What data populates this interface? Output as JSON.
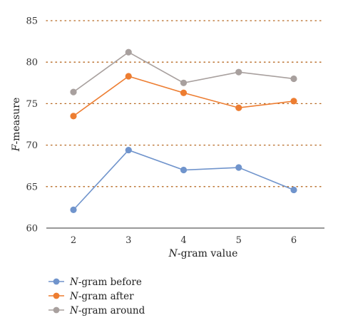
{
  "chart_data": {
    "type": "line",
    "x": [
      2,
      3,
      4,
      5,
      6
    ],
    "xlabel_italic": "N",
    "xlabel_rest": "-gram value",
    "ylabel_italic": "F",
    "ylabel_rest": "-measure",
    "ylim": [
      60,
      85
    ],
    "yticks": [
      60,
      65,
      70,
      75,
      80,
      85
    ],
    "grid": "horizontal-dotted",
    "legend_position": "bottom-left",
    "series": [
      {
        "name_italic": "N",
        "name_rest": "-gram before",
        "color": "#7094cc",
        "values": [
          62.2,
          69.4,
          67.0,
          67.3,
          64.6
        ]
      },
      {
        "name_italic": "N",
        "name_rest": "-gram after",
        "color": "#ed7d31",
        "values": [
          73.5,
          78.3,
          76.3,
          74.5,
          75.3
        ]
      },
      {
        "name_italic": "N",
        "name_rest": "-gram around",
        "color": "#a8a09e",
        "values": [
          76.4,
          81.2,
          77.5,
          78.8,
          78.0
        ]
      }
    ]
  }
}
